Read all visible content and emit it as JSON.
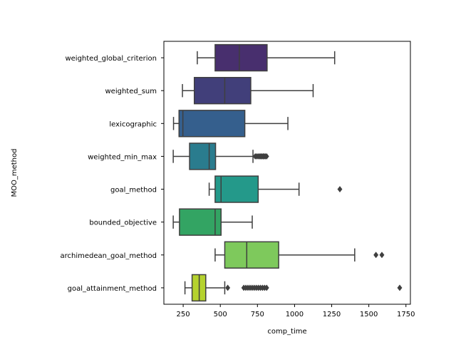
{
  "chart_data": {
    "type": "box",
    "orientation": "horizontal",
    "title": "",
    "xlabel": "comp_time",
    "ylabel": "MOO_method",
    "xlim": [
      120,
      1780
    ],
    "xticks": [
      250,
      500,
      750,
      1000,
      1250,
      1500,
      1750
    ],
    "grid": false,
    "legend": "none",
    "palette": "viridis",
    "categories": [
      "weighted_global_criterion",
      "weighted_sum",
      "lexicographic",
      "weighted_min_max",
      "goal_method",
      "bounded_objective",
      "archimedean_goal_method",
      "goal_attainment_method"
    ],
    "colors": [
      "#482f6e",
      "#413f7a",
      "#355f8d",
      "#2a7c8e",
      "#24998a",
      "#33a463",
      "#7ec95c",
      "#b5d22e"
    ],
    "boxes": [
      {
        "whisker_low": 345,
        "q1": 465,
        "median": 628,
        "q3": 815,
        "whisker_high": 1270,
        "outliers": []
      },
      {
        "whisker_low": 245,
        "q1": 325,
        "median": 530,
        "q3": 705,
        "whisker_high": 1125,
        "outliers": []
      },
      {
        "whisker_low": 185,
        "q1": 222,
        "median": 248,
        "q3": 665,
        "whisker_high": 955,
        "outliers": []
      },
      {
        "whisker_low": 183,
        "q1": 293,
        "median": 425,
        "q3": 468,
        "whisker_high": 720,
        "outliers": [
          735,
          745,
          755,
          765,
          772,
          780,
          788,
          795,
          803,
          812
        ]
      },
      {
        "whisker_low": 425,
        "q1": 465,
        "median": 505,
        "q3": 755,
        "whisker_high": 1030,
        "outliers": [
          1305
        ]
      },
      {
        "whisker_low": 183,
        "q1": 225,
        "median": 465,
        "q3": 505,
        "whisker_high": 715,
        "outliers": []
      },
      {
        "whisker_low": 465,
        "q1": 530,
        "median": 678,
        "q3": 893,
        "whisker_high": 1405,
        "outliers": [
          1548,
          1588
        ]
      },
      {
        "whisker_low": 262,
        "q1": 310,
        "median": 358,
        "q3": 402,
        "whisker_high": 530,
        "outliers": [
          550,
          658,
          672,
          686,
          700,
          714,
          728,
          742,
          756,
          770,
          784,
          798,
          812,
          1708
        ]
      }
    ]
  }
}
